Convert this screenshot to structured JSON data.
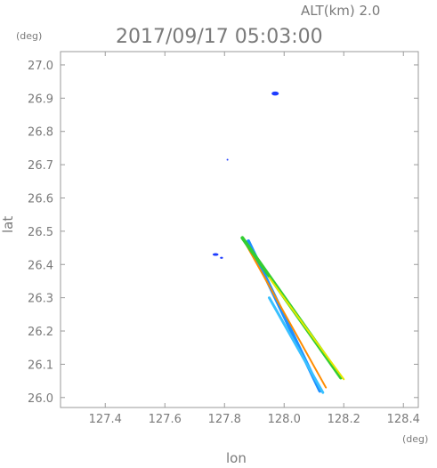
{
  "chart_data": {
    "type": "scatter",
    "title": "2017/09/17 05:03:00",
    "altitude_label": "ALT(km) 2.0",
    "xlabel": "lon",
    "ylabel": "lat",
    "x_unit": "(deg)",
    "y_unit": "(deg)",
    "xlim": [
      127.25,
      128.45
    ],
    "ylim": [
      25.97,
      27.04
    ],
    "x_ticks": [
      "127.4",
      "127.6",
      "127.8",
      "128.0",
      "128.2",
      "128.4"
    ],
    "y_ticks": [
      "27.0",
      "26.9",
      "26.8",
      "26.7",
      "26.6",
      "26.5",
      "26.4",
      "26.3",
      "26.2",
      "26.1",
      "26.0"
    ],
    "grid": false,
    "echo_segments": [
      {
        "name": "blue-cyan-strip",
        "color": "#1e90ff",
        "width": 4,
        "points": [
          [
            127.88,
            26.47
          ],
          [
            128.12,
            26.02
          ]
        ]
      },
      {
        "name": "cyan-strip-edge",
        "color": "#39c0ff",
        "width": 3,
        "points": [
          [
            127.95,
            26.3
          ],
          [
            128.13,
            26.015
          ]
        ]
      },
      {
        "name": "orange-strip",
        "color": "#ff8c00",
        "width": 2,
        "points": [
          [
            127.86,
            26.48
          ],
          [
            128.14,
            26.03
          ]
        ]
      },
      {
        "name": "green-strip",
        "color": "#32cd32",
        "width": 4,
        "points": [
          [
            127.86,
            26.48
          ],
          [
            128.19,
            26.06
          ]
        ]
      },
      {
        "name": "yellow-strip",
        "color": "#e8e800",
        "width": 2,
        "points": [
          [
            127.95,
            26.36
          ],
          [
            128.2,
            26.055
          ]
        ]
      }
    ],
    "echo_blobs": [
      {
        "name": "blob-north",
        "color": "#1e3cff",
        "x": 127.97,
        "y": 26.914,
        "rx": 0.012,
        "ry": 0.006
      },
      {
        "name": "blob-west",
        "color": "#1e3cff",
        "x": 127.77,
        "y": 26.43,
        "rx": 0.01,
        "ry": 0.004
      },
      {
        "name": "blob-west-small",
        "color": "#1e3cff",
        "x": 127.79,
        "y": 26.42,
        "rx": 0.005,
        "ry": 0.003
      },
      {
        "name": "speck-north",
        "color": "#1e3cff",
        "x": 127.81,
        "y": 26.715,
        "rx": 0.003,
        "ry": 0.002
      }
    ]
  }
}
